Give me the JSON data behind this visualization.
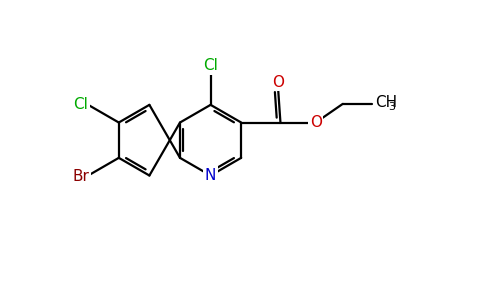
{
  "bg_color": "#ffffff",
  "bond_color": "#000000",
  "atom_colors": {
    "Cl": "#00aa00",
    "Br": "#8B0000",
    "N": "#0000cc",
    "O": "#cc0000",
    "C": "#000000"
  },
  "lw": 1.6,
  "dbo": 0.07,
  "r_hex": 0.72,
  "font_size_atoms": 11,
  "font_size_small": 8,
  "figsize": [
    4.84,
    3.0
  ],
  "dpi": 100,
  "xlim": [
    0,
    9.68
  ],
  "ylim": [
    0,
    6.0
  ]
}
